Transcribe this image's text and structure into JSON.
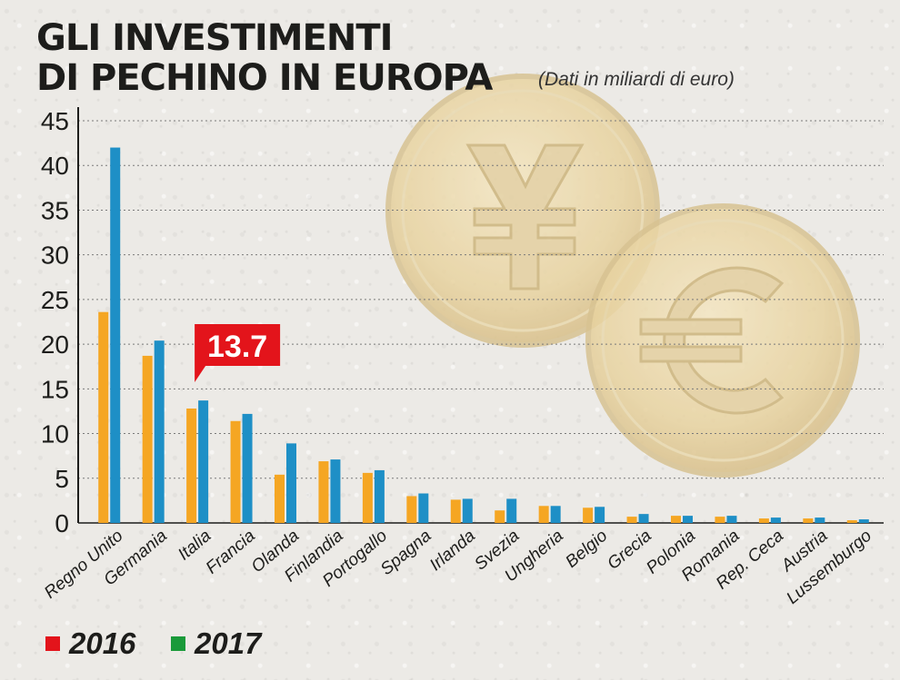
{
  "title_line1": "GLI INVESTIMENTI",
  "title_line2": "DI PECHINO IN EUROPA",
  "subtitle": "(Dati in miliardi di euro)",
  "colors": {
    "series_2016": "#f5a623",
    "series_2017": "#1e8fc6",
    "legend_2016": "#e3141b",
    "legend_2017": "#1a9a3a",
    "callout": "#e3141b"
  },
  "legend": [
    {
      "label": "2016",
      "color": "#e3141b"
    },
    {
      "label": "2017",
      "color": "#1a9a3a"
    }
  ],
  "callout": {
    "text": "13.7",
    "category": "Italia",
    "series": "2017"
  },
  "chart_data": {
    "type": "bar",
    "categories": [
      "Regno Unito",
      "Germania",
      "Italia",
      "Francia",
      "Olanda",
      "Finlandia",
      "Portogallo",
      "Spagna",
      "Irlanda",
      "Svezia",
      "Ungheria",
      "Belgio",
      "Grecia",
      "Polonia",
      "Romania",
      "Rep. Ceca",
      "Austria",
      "Lussemburgo"
    ],
    "series": [
      {
        "name": "2016",
        "values": [
          23.6,
          18.7,
          12.8,
          11.4,
          5.4,
          6.9,
          5.6,
          3.0,
          2.6,
          1.4,
          1.9,
          1.7,
          0.7,
          0.8,
          0.7,
          0.5,
          0.5,
          0.3
        ]
      },
      {
        "name": "2017",
        "values": [
          42.0,
          20.4,
          13.7,
          12.2,
          8.9,
          7.1,
          5.9,
          3.3,
          2.7,
          2.7,
          1.9,
          1.8,
          1.0,
          0.8,
          0.8,
          0.6,
          0.6,
          0.4
        ]
      }
    ],
    "yticks": [
      0,
      5,
      10,
      15,
      20,
      25,
      30,
      35,
      40,
      45
    ],
    "ylim": [
      0,
      45
    ],
    "grid": true,
    "legend_position": "bottom-left"
  }
}
